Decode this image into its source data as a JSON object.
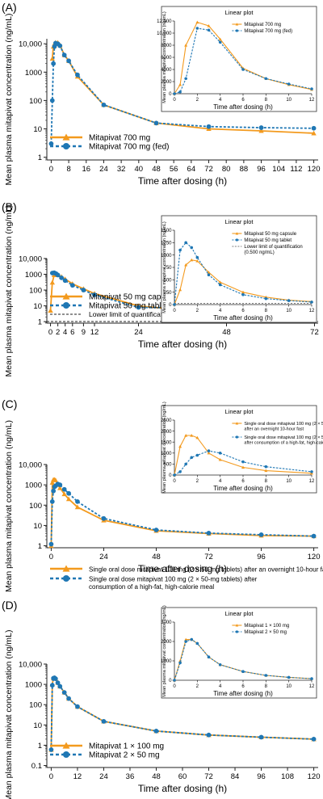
{
  "colors": {
    "orange": "#f39a1e",
    "blue": "#1f77b4",
    "axis": "#222222"
  },
  "chart_data": [
    {
      "panel": "(A)",
      "type": "line",
      "xlabel": "Time after dosing (h)",
      "ylabel": "Mean plasma mitapivat concentration (ng/mL)",
      "yscale": "log",
      "ylim": [
        0.8,
        15000
      ],
      "xlim": [
        -2,
        122
      ],
      "xticks": [
        0,
        8,
        16,
        24,
        32,
        40,
        48,
        56,
        64,
        72,
        80,
        88,
        96,
        104,
        112,
        120
      ],
      "yticks": [
        {
          "v": 1,
          "t": "1"
        },
        {
          "v": 10,
          "t": "10"
        },
        {
          "v": 100,
          "t": "100"
        },
        {
          "v": 1000,
          "t": "1000"
        },
        {
          "v": 10000,
          "t": "10,000"
        }
      ],
      "legend": "bottom-left",
      "series": [
        {
          "name": "Mitapivat 700 mg",
          "color": "orange",
          "dash": false,
          "marker": "triangle",
          "x": [
            0,
            0.5,
            1,
            1.5,
            2,
            3,
            4,
            6,
            8,
            12,
            24,
            48,
            72,
            96,
            120
          ],
          "y": [
            null,
            3000,
            8000,
            10000,
            11000,
            11000,
            9000,
            4000,
            2500,
            700,
            70,
            16,
            10,
            8.5,
            7
          ]
        },
        {
          "name": "Mitapivat 700 mg (fed)",
          "color": "blue",
          "dash": true,
          "marker": "circle",
          "x": [
            0,
            0.5,
            1,
            1.5,
            2,
            3,
            4,
            6,
            8,
            12,
            24,
            48,
            72,
            96,
            120
          ],
          "y": [
            3,
            100,
            2000,
            8000,
            10500,
            10000,
            8500,
            4000,
            2500,
            800,
            70,
            16,
            12,
            11,
            10.5
          ]
        }
      ],
      "inset": {
        "title": "Linear plot",
        "xlabel": "Time after dosing (h)",
        "ylabel": "Mean plasma mitapivat concentration (ng/mL)",
        "ylim": [
          0,
          12000
        ],
        "xlim": [
          0,
          12
        ],
        "yticks": [
          {
            "v": 0,
            "t": "0"
          },
          {
            "v": 2000,
            "t": "2000"
          },
          {
            "v": 4000,
            "t": "4000"
          },
          {
            "v": 6000,
            "t": "6000"
          },
          {
            "v": 8000,
            "t": "8000"
          },
          {
            "v": 10000,
            "t": "10,000"
          },
          {
            "v": 12000,
            "t": "12,000"
          }
        ],
        "xticks": [
          0,
          2,
          4,
          6,
          8,
          10,
          12
        ],
        "series": [
          {
            "name": "Mitapivat 700 mg",
            "color": "orange",
            "dash": false,
            "marker": "triangle",
            "x": [
              0,
              0.5,
              1,
              2,
              3,
              4,
              6,
              8,
              10,
              12
            ],
            "y": [
              0,
              1500,
              8000,
              11800,
              11200,
              9000,
              4200,
              2500,
              1500,
              700
            ]
          },
          {
            "name": "Mitapivat 700 mg (fed)",
            "color": "blue",
            "dash": true,
            "marker": "circle",
            "x": [
              0,
              0.5,
              1,
              2,
              3,
              4,
              6,
              8,
              10,
              12
            ],
            "y": [
              0,
              300,
              2500,
              10800,
              10500,
              8500,
              4000,
              2500,
              1600,
              800
            ]
          }
        ]
      }
    },
    {
      "panel": "(B)",
      "type": "line",
      "xlabel": "Time after dosing (h)",
      "ylabel": "Mean plasma mitapivat concentration (ng/mL)",
      "yscale": "log",
      "ylim": [
        0.8,
        10000
      ],
      "xlim": [
        -1,
        73
      ],
      "xticks": [
        0,
        2,
        4,
        6,
        9,
        12,
        24,
        48,
        72
      ],
      "yticks": [
        {
          "v": 1,
          "t": "1"
        },
        {
          "v": 10,
          "t": "10"
        },
        {
          "v": 100,
          "t": "100"
        },
        {
          "v": 1000,
          "t": "1000"
        },
        {
          "v": 10000,
          "t": "10,000"
        }
      ],
      "legend": "bottom-left",
      "lloq": {
        "name": "Lower limit of quantification (0.500 ng/mL)",
        "value": 0.5
      },
      "series": [
        {
          "name": "Mitapivat 50 mg capsule",
          "color": "orange",
          "dash": false,
          "marker": "triangle",
          "x": [
            0,
            0.5,
            1,
            1.5,
            2,
            3,
            4,
            6,
            9,
            12,
            24,
            48,
            72
          ],
          "y": [
            5,
            300,
            900,
            950,
            900,
            700,
            500,
            250,
            120,
            60,
            10,
            3,
            2
          ]
        },
        {
          "name": "Mitapivat 50 mg tablet",
          "color": "blue",
          "dash": true,
          "marker": "circle",
          "x": [
            0,
            0.5,
            1,
            1.5,
            2,
            3,
            4,
            6,
            9,
            12,
            24,
            48,
            72
          ],
          "y": [
            null,
            1200,
            1250,
            1100,
            900,
            600,
            400,
            200,
            100,
            50,
            8,
            7,
            5
          ]
        }
      ],
      "inset": {
        "title": "Linear plot",
        "xlabel": "Time after dosing (h)",
        "ylabel": "Mean plasma mitapivat concentration (ng/mL)",
        "ylim": [
          0,
          1500
        ],
        "xlim": [
          0,
          12
        ],
        "yticks": [
          {
            "v": 0,
            "t": "0"
          },
          {
            "v": 250,
            "t": "250"
          },
          {
            "v": 500,
            "t": "500"
          },
          {
            "v": 750,
            "t": "750"
          },
          {
            "v": 1000,
            "t": "1000"
          },
          {
            "v": 1250,
            "t": "1250"
          },
          {
            "v": 1500,
            "t": "1500"
          }
        ],
        "xticks": [
          0,
          2,
          4,
          6,
          8,
          10,
          12
        ],
        "lloq": 0.5,
        "series": [
          {
            "name": "Mitapivat 50 mg capsule",
            "color": "orange",
            "dash": false,
            "marker": "triangle",
            "x": [
              0,
              0.5,
              1,
              1.5,
              2,
              3,
              4,
              6,
              8,
              10,
              12
            ],
            "y": [
              0,
              300,
              800,
              900,
              880,
              650,
              450,
              250,
              150,
              90,
              60
            ]
          },
          {
            "name": "Mitapivat 50 mg tablet",
            "color": "blue",
            "dash": true,
            "marker": "circle",
            "x": [
              0,
              0.5,
              1,
              1.5,
              2,
              3,
              4,
              6,
              8,
              10,
              12
            ],
            "y": [
              0,
              1100,
              1250,
              1150,
              950,
              600,
              400,
              200,
              120,
              80,
              50
            ]
          }
        ],
        "legend_extra": "Lower limit of quantification (0.500 ng/mL)"
      }
    },
    {
      "panel": "(C)",
      "type": "line",
      "xlabel": "Time after dosing (h)",
      "ylabel": "Mean plasma mitapivat concentration (ng/mL)",
      "yscale": "log",
      "ylim": [
        0.8,
        10000
      ],
      "xlim": [
        -2,
        122
      ],
      "xticks": [
        0,
        24,
        48,
        72,
        96,
        120
      ],
      "yticks": [
        {
          "v": 1,
          "t": "1"
        },
        {
          "v": 10,
          "t": "10"
        },
        {
          "v": 100,
          "t": "100"
        },
        {
          "v": 1000,
          "t": "1000"
        },
        {
          "v": 10000,
          "t": "10,000"
        }
      ],
      "legend": "below",
      "series": [
        {
          "name": "Single oral dose mitapivat 100 mg (2 × 50-mg tablets) after an overnight 10-hour fast",
          "color": "orange",
          "dash": false,
          "marker": "triangle",
          "x": [
            0,
            0.5,
            1,
            1.5,
            2,
            3,
            4,
            6,
            8,
            12,
            24,
            48,
            72,
            96,
            120
          ],
          "y": [
            1,
            1300,
            1800,
            1800,
            1700,
            1000,
            700,
            350,
            200,
            80,
            18,
            5.5,
            4,
            3.2,
            3
          ]
        },
        {
          "name": "Single oral dose mitapivat 100 mg (2 × 50-mg tablets) after consumption of a high-fat, high-calorie meal",
          "color": "blue",
          "dash": true,
          "marker": "circle",
          "x": [
            0,
            0.5,
            1,
            1.5,
            2,
            3,
            4,
            6,
            8,
            12,
            24,
            48,
            72,
            96,
            120
          ],
          "y": [
            1.2,
            150,
            500,
            800,
            900,
            1100,
            1000,
            600,
            380,
            150,
            22,
            6,
            4.2,
            3.5,
            3
          ]
        }
      ],
      "inset": {
        "title": "Linear plot",
        "xlabel": "Time after dosing (h)",
        "ylabel": "Mean plasma mitapivat concentration (ng/mL)",
        "ylim": [
          0,
          2500
        ],
        "xlim": [
          0,
          12
        ],
        "yticks": [
          {
            "v": 0,
            "t": "0"
          },
          {
            "v": 500,
            "t": "500"
          },
          {
            "v": 1000,
            "t": "1000"
          },
          {
            "v": 1500,
            "t": "1500"
          },
          {
            "v": 2000,
            "t": "2000"
          },
          {
            "v": 2500,
            "t": "2500"
          }
        ],
        "xticks": [
          0,
          2,
          4,
          6,
          8,
          10,
          12
        ],
        "series": [
          {
            "name": "Single oral dose mitapivat 100 mg (2 × 50-mg tablets) after an overnight 10-hour fast",
            "color": "orange",
            "dash": false,
            "marker": "triangle",
            "x": [
              0,
              0.5,
              1,
              1.5,
              2,
              3,
              4,
              6,
              8,
              12
            ],
            "y": [
              0,
              1300,
              1800,
              1800,
              1700,
              1000,
              700,
              350,
              200,
              80
            ]
          },
          {
            "name": "Single oral dose mitapivat 100 mg (2 × 50-mg tablets) after consumption of a high-fat, high-calorie meal",
            "color": "blue",
            "dash": true,
            "marker": "circle",
            "x": [
              0,
              0.5,
              1,
              1.5,
              2,
              3,
              4,
              6,
              8,
              12
            ],
            "y": [
              0,
              150,
              500,
              800,
              900,
              1100,
              1000,
              600,
              380,
              150
            ]
          }
        ]
      }
    },
    {
      "panel": "(D)",
      "type": "line",
      "xlabel": "Time after dosing (h)",
      "ylabel": "Mean plasma mitapivat concentration (ng/mL)",
      "yscale": "log",
      "ylim": [
        0.08,
        10000
      ],
      "xlim": [
        -2,
        122
      ],
      "xticks": [
        0,
        12,
        24,
        36,
        48,
        60,
        72,
        84,
        96,
        108,
        120
      ],
      "yticks": [
        {
          "v": 0.1,
          "t": "0.1"
        },
        {
          "v": 1,
          "t": "1"
        },
        {
          "v": 10,
          "t": "10"
        },
        {
          "v": 100,
          "t": "100"
        },
        {
          "v": 1000,
          "t": "1000"
        },
        {
          "v": 10000,
          "t": "10,000"
        }
      ],
      "legend": "bottom-left",
      "series": [
        {
          "name": "Mitapivat 1 × 100 mg",
          "color": "orange",
          "dash": false,
          "marker": "triangle",
          "x": [
            0,
            0.5,
            1,
            1.5,
            2,
            3,
            4,
            6,
            8,
            12,
            24,
            48,
            72,
            96,
            120
          ],
          "y": [
            0.6,
            1000,
            2000,
            2100,
            1900,
            1200,
            800,
            400,
            200,
            80,
            15,
            5,
            3.2,
            2.5,
            2
          ]
        },
        {
          "name": "Mitapivat 2 × 50 mg",
          "color": "blue",
          "dash": true,
          "marker": "circle",
          "x": [
            0,
            0.5,
            1,
            1.5,
            2,
            3,
            4,
            6,
            8,
            12,
            24,
            48,
            72,
            96,
            120
          ],
          "y": [
            0.6,
            900,
            2000,
            2100,
            1900,
            1200,
            800,
            400,
            200,
            80,
            15,
            5,
            3.2,
            2.5,
            2
          ]
        }
      ],
      "inset": {
        "title": "Linear plot",
        "xlabel": "Time after dosing (h)",
        "ylabel": "Mean plasma mitapivat concentration (ng/mL)",
        "ylim": [
          0,
          3000
        ],
        "xlim": [
          0,
          12
        ],
        "yticks": [
          {
            "v": 0,
            "t": "0"
          },
          {
            "v": 1000,
            "t": "1000"
          },
          {
            "v": 2000,
            "t": "2000"
          },
          {
            "v": 3000,
            "t": "3000"
          }
        ],
        "xticks": [
          0,
          2,
          4,
          6,
          8,
          10,
          12
        ],
        "series": [
          {
            "name": "Mitapivat 1 × 100 mg",
            "color": "orange",
            "dash": false,
            "marker": "triangle",
            "x": [
              0,
              0.5,
              1,
              1.5,
              2,
              3,
              4,
              6,
              8,
              10,
              12
            ],
            "y": [
              0,
              1000,
              2100,
              2100,
              1900,
              1200,
              800,
              450,
              250,
              150,
              80
            ]
          },
          {
            "name": "Mitapivat 2 × 50 mg",
            "color": "blue",
            "dash": true,
            "marker": "circle",
            "x": [
              0,
              0.5,
              1,
              1.5,
              2,
              3,
              4,
              6,
              8,
              10,
              12
            ],
            "y": [
              0,
              900,
              2000,
              2100,
              1900,
              1200,
              800,
              450,
              250,
              150,
              80
            ]
          }
        ]
      }
    }
  ]
}
